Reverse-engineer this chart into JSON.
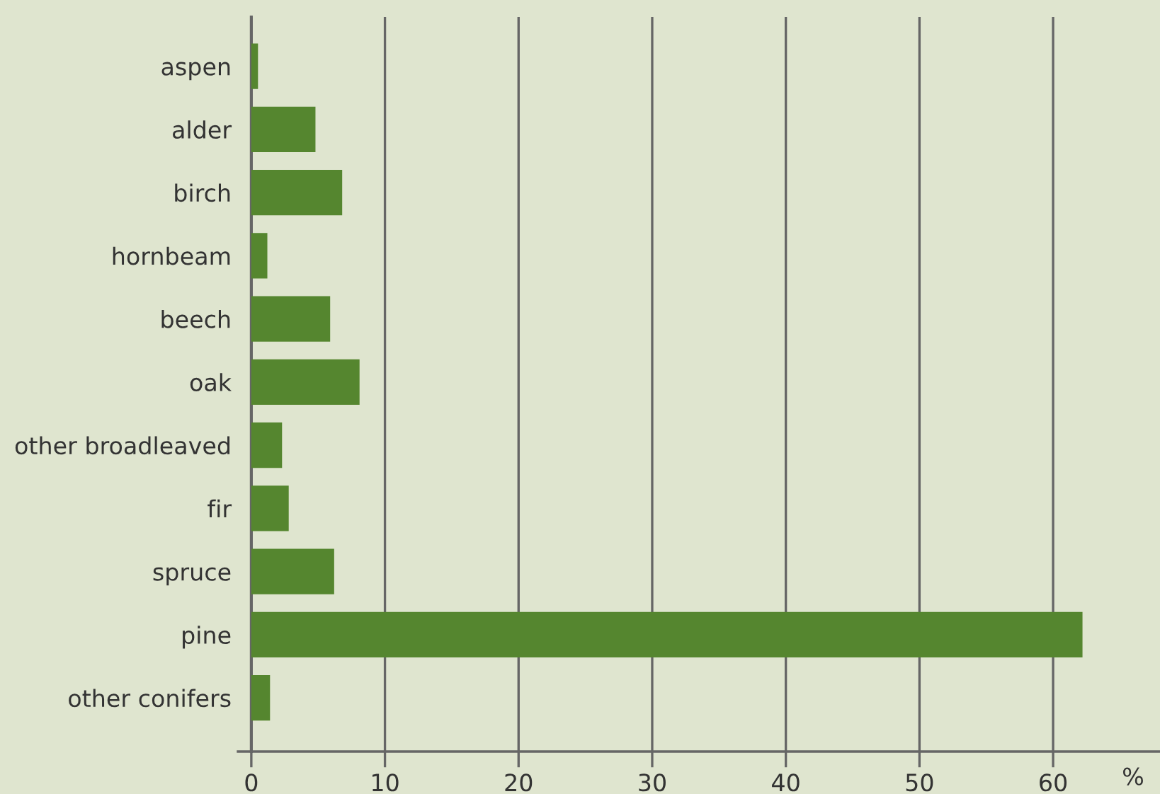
{
  "chart_data": {
    "type": "bar",
    "orientation": "horizontal",
    "xlabel": "%",
    "categories": [
      "aspen",
      "alder",
      "birch",
      "hornbeam",
      "beech",
      "oak",
      "other broadleaved",
      "fir",
      "spruce",
      "pine",
      "other conifers"
    ],
    "values": [
      0.5,
      4.8,
      6.8,
      1.2,
      5.9,
      8.1,
      2.3,
      2.8,
      6.2,
      62.2,
      1.4
    ],
    "color": "#55862f",
    "xlim": [
      -1,
      68
    ],
    "xticks": [
      0,
      10,
      20,
      30,
      40,
      50,
      60
    ],
    "grid": "x",
    "legend": false
  }
}
